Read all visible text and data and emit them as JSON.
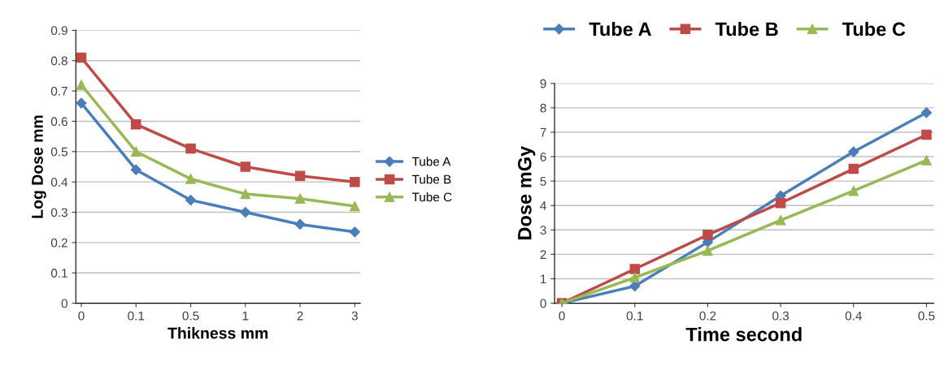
{
  "chart_data": [
    {
      "type": "line",
      "xlabel": "Thikness mm",
      "ylabel": "Log Dose mm",
      "categories": [
        "0",
        "0.1",
        "0.5",
        "1",
        "2",
        "3"
      ],
      "ylim": [
        0,
        0.9
      ],
      "yticks": [
        0,
        0.1,
        0.2,
        0.3,
        0.4,
        0.5,
        0.6,
        0.7,
        0.8,
        0.9
      ],
      "grid": "y",
      "legend": "right",
      "series": [
        {
          "name": "Tube A",
          "color": "#4a7ebb",
          "marker": "diamond",
          "values": [
            0.66,
            0.44,
            0.34,
            0.3,
            0.26,
            0.235
          ]
        },
        {
          "name": "Tube B",
          "color": "#be4b48",
          "marker": "square",
          "values": [
            0.81,
            0.59,
            0.51,
            0.45,
            0.42,
            0.4
          ]
        },
        {
          "name": "Tube C",
          "color": "#98b954",
          "marker": "triangle",
          "values": [
            0.72,
            0.5,
            0.41,
            0.36,
            0.345,
            0.32
          ]
        }
      ]
    },
    {
      "type": "line",
      "xlabel": "Time second",
      "ylabel": "Dose mGy",
      "categories": [
        "0",
        "0.1",
        "0.2",
        "0.3",
        "0.4",
        "0.5"
      ],
      "ylim": [
        0,
        9
      ],
      "yticks": [
        0,
        1,
        2,
        3,
        4,
        5,
        6,
        7,
        8,
        9
      ],
      "grid": "y",
      "legend": "top",
      "series": [
        {
          "name": "Tube A",
          "color": "#4a7ebb",
          "marker": "diamond",
          "values": [
            0,
            0.7,
            2.5,
            4.4,
            6.2,
            7.8
          ]
        },
        {
          "name": "Tube B",
          "color": "#be4b48",
          "marker": "square",
          "values": [
            0,
            1.4,
            2.8,
            4.1,
            5.5,
            6.9
          ]
        },
        {
          "name": "Tube C",
          "color": "#98b954",
          "marker": "triangle",
          "values": [
            0,
            1.05,
            2.15,
            3.4,
            4.6,
            5.85
          ]
        }
      ]
    }
  ]
}
